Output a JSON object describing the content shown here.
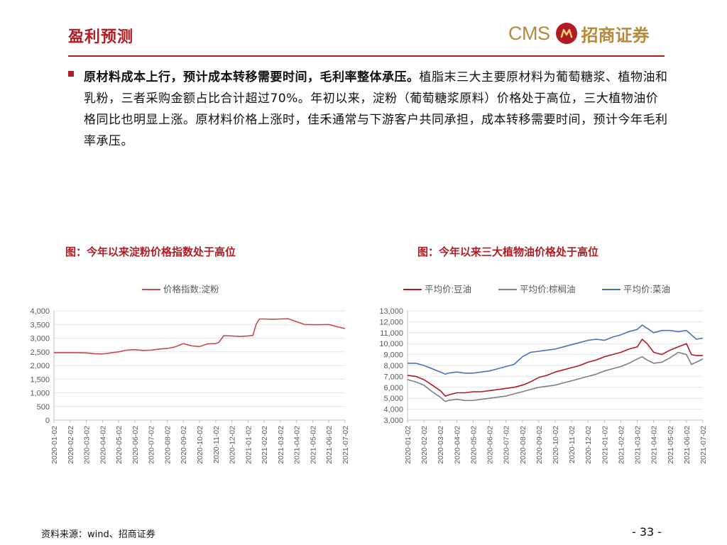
{
  "header": {
    "title": "盈利预测",
    "logo_text": "CMS",
    "logo_name": "招商证券"
  },
  "bullet": {
    "bold": "原材料成本上行，预计成本转移需要时间，毛利率整体承压。",
    "text": "植脂末三大主要原材料为葡萄糖浆、植物油和乳粉，三者采购金额占比合计超过70%。年初以来，淀粉（葡萄糖浆原料）价格处于高位，三大植物油价格同比也明显上涨。原材料价格上涨时，佳禾通常与下游客户共同承担，成本转移需要时间，预计今年毛利率承压。"
  },
  "footer": {
    "source": "资料来源：wind、招商证券",
    "page": "- 33 -"
  },
  "colors": {
    "brand_red": "#b01c22",
    "gold": "#b58a3c",
    "starch": "#c8494c",
    "soy": "#b01c22",
    "palm": "#7f7f7f",
    "rapeseed": "#4472c4"
  },
  "chart_data": [
    {
      "type": "line",
      "title": "图：今年以来淀粉价格指数处于高位",
      "x_ticks": [
        "2020-01-02",
        "2020-02-02",
        "2020-03-02",
        "2020-04-02",
        "2020-05-02",
        "2020-06-02",
        "2020-07-02",
        "2020-08-02",
        "2020-09-02",
        "2020-10-02",
        "2020-11-02",
        "2020-12-02",
        "2021-01-02",
        "2021-02-02",
        "2021-03-02",
        "2021-04-02",
        "2021-05-02",
        "2021-06-02",
        "2021-07-02"
      ],
      "ylim": [
        0,
        4000
      ],
      "y_ticks": [
        "0",
        "500",
        "1,000",
        "1,500",
        "2,000",
        "2,500",
        "3,000",
        "3,500",
        "4,000"
      ],
      "legend_position": "top",
      "series": [
        {
          "name": "价格指数:淀粉",
          "color": "#c8494c",
          "x": [
            0,
            0.5,
            1,
            1.5,
            2,
            2.5,
            3,
            3.3,
            3.6,
            4,
            4.5,
            5,
            5.5,
            6,
            6.5,
            7,
            7.5,
            8,
            8.5,
            9,
            9.5,
            10,
            10.2,
            10.5,
            11,
            11.5,
            12,
            12.3,
            12.5,
            12.7,
            13,
            13.5,
            14,
            14.5,
            15,
            15.5,
            16,
            16.5,
            17,
            17.5,
            18
          ],
          "y": [
            2470,
            2470,
            2470,
            2470,
            2460,
            2430,
            2420,
            2440,
            2470,
            2500,
            2560,
            2580,
            2550,
            2560,
            2600,
            2620,
            2680,
            2800,
            2720,
            2690,
            2790,
            2800,
            2850,
            3090,
            3080,
            3060,
            3080,
            3100,
            3500,
            3700,
            3700,
            3690,
            3700,
            3710,
            3600,
            3500,
            3490,
            3490,
            3500,
            3420,
            3350
          ]
        }
      ]
    },
    {
      "type": "line",
      "title": "图：今年以来三大植物油价格处于高位",
      "x_ticks": [
        "2020-01-02",
        "2020-02-02",
        "2020-03-02",
        "2020-04-02",
        "2020-05-02",
        "2020-06-02",
        "2020-07-02",
        "2020-08-02",
        "2020-09-02",
        "2020-10-02",
        "2020-11-02",
        "2020-12-02",
        "2021-01-02",
        "2021-02-02",
        "2021-03-02",
        "2021-04-02",
        "2021-05-02",
        "2021-06-02",
        "2021-07-02"
      ],
      "ylim": [
        3000,
        13000
      ],
      "y_ticks": [
        "3,000",
        "4,000",
        "5,000",
        "6,000",
        "7,000",
        "8,000",
        "9,000",
        "10,000",
        "11,000",
        "12,000",
        "13,000"
      ],
      "legend_position": "top",
      "series": [
        {
          "name": "平均价:豆油",
          "color": "#b01c22",
          "x": [
            0,
            0.5,
            1,
            1.5,
            2,
            2.3,
            2.5,
            3,
            3.5,
            4,
            4.5,
            5,
            5.5,
            6,
            6.5,
            7,
            7.5,
            8,
            8.5,
            9,
            9.5,
            10,
            10.5,
            11,
            11.5,
            12,
            12.5,
            13,
            13.5,
            14,
            14.3,
            14.6,
            15,
            15.5,
            16,
            16.5,
            17,
            17.3,
            17.6,
            18
          ],
          "y": [
            7100,
            7000,
            6700,
            6200,
            5700,
            5200,
            5300,
            5500,
            5500,
            5600,
            5600,
            5700,
            5800,
            5900,
            6000,
            6200,
            6500,
            6900,
            7100,
            7400,
            7600,
            7800,
            8000,
            8300,
            8500,
            8800,
            9000,
            9200,
            9500,
            9700,
            10400,
            10000,
            9200,
            9000,
            9400,
            9700,
            10000,
            9000,
            8900,
            8900
          ]
        },
        {
          "name": "平均价:棕榈油",
          "color": "#7f7f7f",
          "x": [
            0,
            0.5,
            1,
            1.5,
            2,
            2.3,
            2.5,
            3,
            3.5,
            4,
            4.5,
            5,
            5.5,
            6,
            6.5,
            7,
            7.5,
            8,
            8.5,
            9,
            9.5,
            10,
            10.5,
            11,
            11.5,
            12,
            12.5,
            13,
            13.5,
            14,
            14.3,
            14.6,
            15,
            15.5,
            16,
            16.5,
            17,
            17.3,
            17.6,
            18
          ],
          "y": [
            6700,
            6500,
            6200,
            5600,
            5100,
            4700,
            4800,
            4900,
            4800,
            4800,
            4900,
            5000,
            5100,
            5200,
            5400,
            5600,
            5800,
            6000,
            6100,
            6200,
            6400,
            6600,
            6800,
            7000,
            7200,
            7500,
            7700,
            7900,
            8200,
            8600,
            8800,
            8500,
            8200,
            8300,
            8700,
            9200,
            9000,
            8100,
            8300,
            8600
          ]
        },
        {
          "name": "平均价:菜油",
          "color": "#4472c4",
          "x": [
            0,
            0.5,
            1,
            1.5,
            2,
            2.3,
            2.5,
            3,
            3.5,
            4,
            4.5,
            5,
            5.5,
            6,
            6.5,
            7,
            7.5,
            8,
            8.5,
            9,
            9.5,
            10,
            10.5,
            11,
            11.5,
            12,
            12.5,
            13,
            13.5,
            14,
            14.3,
            14.6,
            15,
            15.5,
            16,
            16.5,
            17,
            17.3,
            17.6,
            18
          ],
          "y": [
            8200,
            8200,
            8000,
            7700,
            7400,
            7200,
            7300,
            7400,
            7300,
            7300,
            7400,
            7500,
            7700,
            7900,
            8100,
            8800,
            9200,
            9300,
            9400,
            9500,
            9700,
            9900,
            10100,
            10300,
            10400,
            10300,
            10600,
            10800,
            11100,
            11300,
            11700,
            11400,
            11000,
            11200,
            11200,
            11100,
            11200,
            10800,
            10400,
            10500
          ]
        }
      ]
    }
  ]
}
